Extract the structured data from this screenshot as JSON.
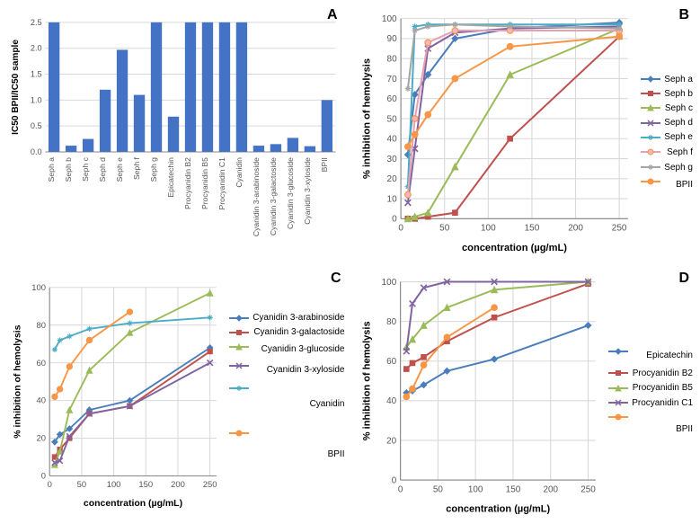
{
  "colors": {
    "bar": "#4472c4",
    "grid": "#d9d9d9",
    "axis": "#888888",
    "tick": "#595959",
    "seph_a": "#4a7ebb",
    "seph_b": "#c0504d",
    "seph_c": "#9bbb59",
    "seph_d": "#8064a2",
    "seph_e": "#4bacc6",
    "seph_f": "#f79646",
    "seph_g": "#a5a5a5",
    "bpii": "#f79646",
    "cy_arab": "#4a7ebb",
    "cy_gal": "#c0504d",
    "cy_gluc": "#9bbb59",
    "cy_xyl": "#8064a2",
    "cyanidin": "#4bacc6",
    "epi": "#4a7ebb",
    "pb2": "#c0504d",
    "pb5": "#9bbb59",
    "pc1": "#8064a2"
  },
  "panelA": {
    "label": "A",
    "type": "bar",
    "ylabel": "IC50 BPII/IC50 sample",
    "ylim": [
      0,
      2.5
    ],
    "ytick_step": 0.5,
    "categories": [
      "Seph a",
      "Seph b",
      "Seph c",
      "Seph d",
      "Seph e",
      "Seph f",
      "Seph g",
      "Epicatechin",
      "Procyanidin B2",
      "Procyanidin B5",
      "Procyanidin C1",
      "Cyanidin",
      "Cyanidin 3-arabinoside",
      "Cyanidin 3-galactoside",
      "Cyanidin 3-glucoside",
      "Cyanidin 3-xyloside",
      "BPII"
    ],
    "values": [
      2.5,
      0.12,
      0.25,
      1.2,
      1.97,
      1.1,
      2.5,
      0.68,
      2.5,
      2.5,
      2.5,
      2.5,
      0.12,
      0.15,
      0.27,
      0.11,
      1.0
    ]
  },
  "panelB": {
    "label": "B",
    "type": "line",
    "xlabel": "concentration (µg/mL)",
    "ylabel": "% inhibition of hemolysis",
    "xlim": [
      0,
      260
    ],
    "xticks": [
      0,
      50,
      100,
      150,
      200,
      250
    ],
    "ylim": [
      0,
      100
    ],
    "ytick_step": 10,
    "series": [
      {
        "name": "Seph a",
        "color": "seph_a",
        "marker": "diamond",
        "pink": false,
        "x": [
          8,
          16,
          31,
          62,
          125,
          250
        ],
        "y": [
          32,
          62,
          72,
          90,
          95,
          98
        ]
      },
      {
        "name": "Seph b",
        "color": "seph_b",
        "marker": "square",
        "pink": false,
        "x": [
          8,
          16,
          31,
          62,
          125,
          250
        ],
        "y": [
          0,
          0,
          1,
          3,
          40,
          91
        ]
      },
      {
        "name": "Seph c",
        "color": "seph_c",
        "marker": "triangle",
        "pink": false,
        "x": [
          8,
          16,
          31,
          62,
          125,
          250
        ],
        "y": [
          0,
          1,
          3,
          26,
          72,
          95
        ]
      },
      {
        "name": "Seph d",
        "color": "seph_d",
        "marker": "x",
        "pink": false,
        "x": [
          8,
          16,
          31,
          62,
          125,
          250
        ],
        "y": [
          8,
          35,
          85,
          93,
          95,
          96
        ]
      },
      {
        "name": "Seph e",
        "color": "seph_e",
        "marker": "star",
        "pink": false,
        "x": [
          8,
          16,
          31,
          62,
          125,
          250
        ],
        "y": [
          16,
          96,
          97,
          97,
          97,
          97
        ]
      },
      {
        "name": "Seph f",
        "color": "seph_f",
        "marker": "circle",
        "pink": true,
        "x": [
          8,
          16,
          31,
          62,
          125,
          250
        ],
        "y": [
          12,
          50,
          88,
          94,
          94,
          94
        ]
      },
      {
        "name": "Seph g",
        "color": "seph_g",
        "marker": "plus",
        "pink": false,
        "x": [
          8,
          16,
          31,
          62,
          125,
          250
        ],
        "y": [
          65,
          94,
          96,
          97,
          96,
          95
        ]
      },
      {
        "name": "BPII",
        "color": "bpii",
        "marker": "circle",
        "pink": false,
        "x": [
          8,
          16,
          31,
          62,
          125,
          250
        ],
        "y": [
          36,
          42,
          52,
          70,
          86,
          91
        ]
      }
    ]
  },
  "panelC": {
    "label": "C",
    "type": "line",
    "xlabel": "concentration (µg/mL)",
    "ylabel": "% inhibition of hemolysis",
    "xlim": [
      0,
      260
    ],
    "xticks": [
      0,
      50,
      100,
      150,
      200,
      250
    ],
    "ylim": [
      0,
      100
    ],
    "ytick_step": 20,
    "series": [
      {
        "name": "Cyanidin 3-arabinoside",
        "color": "cy_arab",
        "marker": "diamond",
        "x": [
          8,
          16,
          31,
          62,
          125,
          250
        ],
        "y": [
          18,
          22,
          25,
          35,
          40,
          68
        ]
      },
      {
        "name": "Cyanidin 3-galactoside",
        "color": "cy_gal",
        "marker": "square",
        "x": [
          8,
          16,
          31,
          62,
          125,
          250
        ],
        "y": [
          10,
          14,
          20,
          33,
          37,
          66
        ]
      },
      {
        "name": "Cyanidin 3-glucoside",
        "color": "cy_gluc",
        "marker": "triangle",
        "x": [
          8,
          16,
          31,
          62,
          125,
          250
        ],
        "y": [
          6,
          13,
          35,
          56,
          76,
          97
        ]
      },
      {
        "name": "Cyanidin 3-xyloside",
        "color": "cy_xyl",
        "marker": "x",
        "x": [
          8,
          16,
          31,
          62,
          125,
          250
        ],
        "y": [
          7,
          8,
          21,
          33,
          37,
          60
        ]
      },
      {
        "name": "Cyanidin",
        "color": "cyanidin",
        "marker": "star",
        "x": [
          8,
          16,
          31,
          62,
          125,
          250
        ],
        "y": [
          67,
          72,
          74,
          78,
          81,
          84
        ]
      },
      {
        "name": "BPII",
        "color": "bpii",
        "marker": "circle",
        "x": [
          8,
          16,
          31,
          62,
          125
        ],
        "y": [
          42,
          46,
          58,
          72,
          87
        ]
      }
    ]
  },
  "panelD": {
    "label": "D",
    "type": "line",
    "xlabel": "concentration (µg/mL)",
    "ylabel": "% inhibition of hemolysis",
    "xlim": [
      0,
      260
    ],
    "xticks": [
      0,
      50,
      100,
      150,
      200,
      250
    ],
    "ylim": [
      0,
      100
    ],
    "ytick_step": 20,
    "series": [
      {
        "name": "Epicatechin",
        "color": "epi",
        "marker": "diamond",
        "x": [
          8,
          16,
          31,
          62,
          125,
          250
        ],
        "y": [
          44,
          45,
          48,
          55,
          61,
          78
        ]
      },
      {
        "name": "Procyanidin B2",
        "color": "pb2",
        "marker": "square",
        "x": [
          8,
          16,
          31,
          62,
          125,
          250
        ],
        "y": [
          56,
          59,
          62,
          70,
          82,
          99
        ]
      },
      {
        "name": "Procyanidin B5",
        "color": "pb5",
        "marker": "triangle",
        "x": [
          8,
          16,
          31,
          62,
          125,
          250
        ],
        "y": [
          67,
          71,
          78,
          87,
          96,
          100
        ]
      },
      {
        "name": "Procyanidin C1",
        "color": "pc1",
        "marker": "x",
        "x": [
          8,
          16,
          31,
          62,
          125,
          250
        ],
        "y": [
          65,
          89,
          97,
          100,
          100,
          100
        ]
      },
      {
        "name": "BPII",
        "color": "bpii",
        "marker": "circle",
        "x": [
          8,
          16,
          31,
          62,
          125
        ],
        "y": [
          42,
          46,
          58,
          72,
          87
        ]
      }
    ]
  }
}
